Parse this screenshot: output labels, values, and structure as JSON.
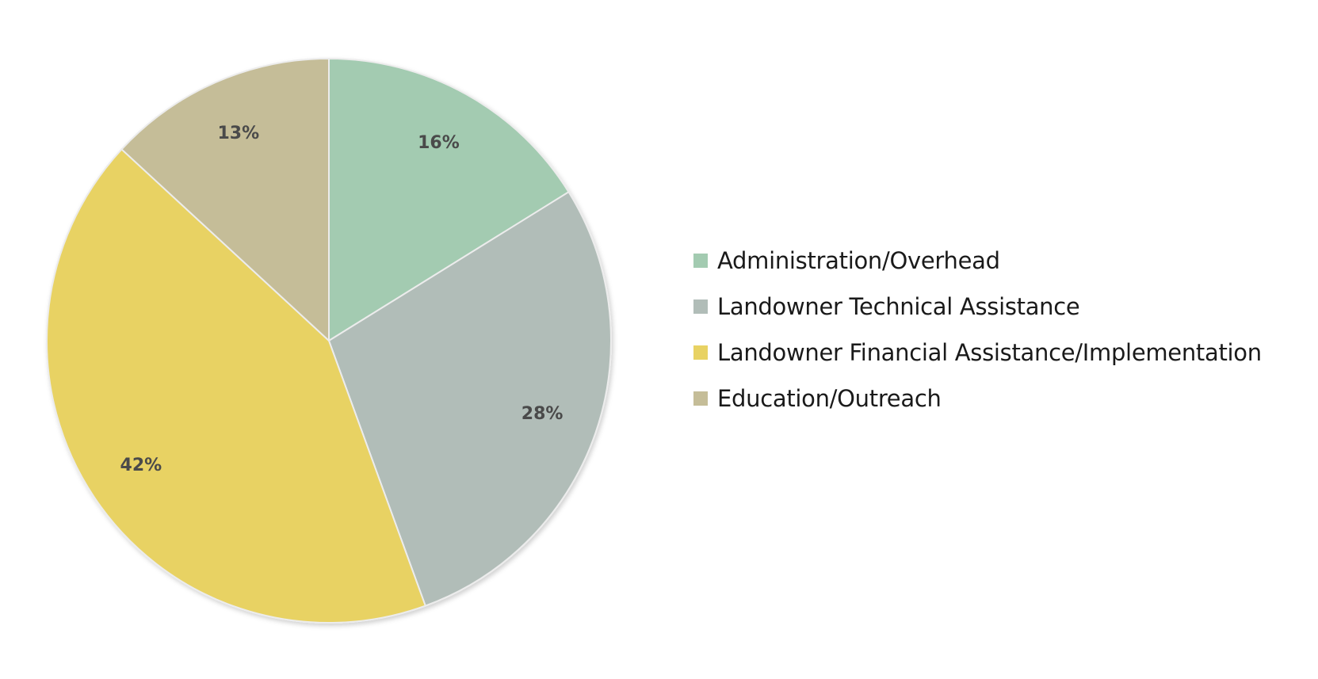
{
  "chart_data": {
    "type": "pie",
    "title": "",
    "series": [
      {
        "name": "Administration/Overhead",
        "value": 16,
        "label": "16%",
        "color": "#a3cbb1"
      },
      {
        "name": "Landowner Technical Assistance",
        "value": 28,
        "label": "28%",
        "color": "#b1bdb8"
      },
      {
        "name": "Landowner Financial Assistance/Implementation",
        "value": 42,
        "label": "42%",
        "color": "#e8d263"
      },
      {
        "name": "Education/Outreach",
        "value": 13,
        "label": "13%",
        "color": "#c5bd98"
      }
    ],
    "start": "12 o'clock",
    "direction": "clockwise",
    "legend_placement": "right"
  }
}
